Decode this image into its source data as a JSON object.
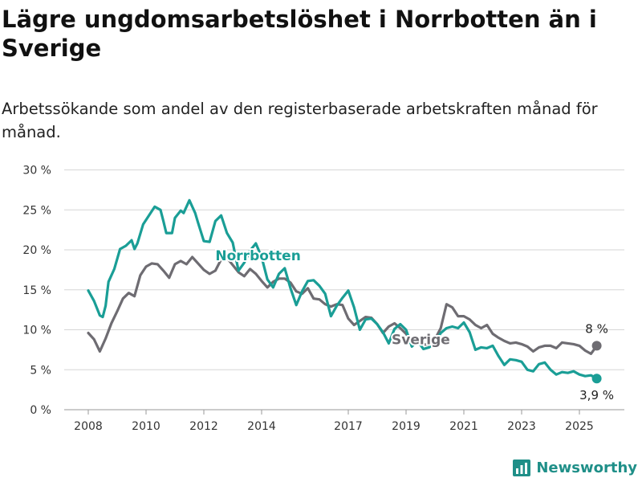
{
  "title": "Lägre ungdomsarbetslöshet i Norrbotten än i Sverige",
  "subtitle": "Arbetssökande som andel av den registerbaserade arbetskraften månad för månad.",
  "brand": "Newsworthy",
  "chart_data": {
    "type": "line",
    "ylabel": "",
    "xlabel": "",
    "ylim": [
      0,
      30
    ],
    "xlim": [
      2007.5,
      2026.5
    ],
    "y_ticks": [
      0,
      5,
      10,
      15,
      20,
      25,
      30
    ],
    "y_tick_labels": [
      "0 %",
      "5 %",
      "10 %",
      "15 %",
      "20 %",
      "25 %",
      "30 %"
    ],
    "x_ticks": [
      2008,
      2010,
      2012,
      2014,
      2017,
      2019,
      2021,
      2023,
      2025
    ],
    "x_tick_labels": [
      "2008",
      "2010",
      "2012",
      "2014",
      "2017",
      "2019",
      "2021",
      "2023",
      "2025"
    ],
    "grid": "horizontal",
    "colors": {
      "norrbotten": "#1a9e96",
      "sverige": "#6e6c72",
      "grid": "#d6d6d6"
    },
    "series": [
      {
        "name": "Norrbotten",
        "label_at": [
          2012.4,
          18.7
        ],
        "end_label": "3,9 %",
        "x": [
          2008.0,
          2008.2,
          2008.4,
          2008.5,
          2008.6,
          2008.7,
          2008.9,
          2009.1,
          2009.3,
          2009.5,
          2009.6,
          2009.7,
          2009.9,
          2010.1,
          2010.3,
          2010.5,
          2010.6,
          2010.7,
          2010.9,
          2011.0,
          2011.2,
          2011.3,
          2011.5,
          2011.7,
          2011.8,
          2012.0,
          2012.2,
          2012.4,
          2012.6,
          2012.8,
          2013.0,
          2013.2,
          2013.4,
          2013.6,
          2013.8,
          2014.0,
          2014.2,
          2014.4,
          2014.6,
          2014.8,
          2015.0,
          2015.2,
          2015.4,
          2015.6,
          2015.8,
          2016.0,
          2016.2,
          2016.4,
          2016.6,
          2016.8,
          2017.0,
          2017.2,
          2017.4,
          2017.6,
          2017.8,
          2018.0,
          2018.2,
          2018.4,
          2018.6,
          2018.8,
          2019.0,
          2019.2,
          2019.4,
          2019.6,
          2019.8,
          2020.0,
          2020.2,
          2020.4,
          2020.6,
          2020.8,
          2021.0,
          2021.2,
          2021.4,
          2021.6,
          2021.8,
          2022.0,
          2022.2,
          2022.4,
          2022.6,
          2022.8,
          2023.0,
          2023.2,
          2023.4,
          2023.6,
          2023.8,
          2024.0,
          2024.2,
          2024.4,
          2024.6,
          2024.8,
          2025.0,
          2025.2,
          2025.4,
          2025.6
        ],
        "values": [
          14.9,
          13.6,
          11.8,
          11.6,
          13.0,
          16.0,
          17.6,
          20.1,
          20.5,
          21.2,
          20.1,
          20.8,
          23.2,
          24.3,
          25.4,
          25.0,
          23.6,
          22.1,
          22.1,
          24.0,
          24.9,
          24.6,
          26.2,
          24.6,
          23.4,
          21.1,
          21.0,
          23.6,
          24.3,
          22.1,
          20.9,
          17.4,
          18.4,
          19.9,
          20.8,
          19.1,
          16.3,
          15.3,
          17.0,
          17.7,
          15.2,
          13.1,
          14.8,
          16.1,
          16.2,
          15.5,
          14.5,
          11.7,
          13.0,
          14.0,
          14.9,
          12.8,
          10.0,
          11.3,
          11.4,
          10.7,
          9.7,
          8.3,
          10.1,
          10.7,
          10.0,
          7.9,
          8.6,
          7.6,
          7.8,
          8.4,
          9.6,
          10.2,
          10.4,
          10.2,
          10.9,
          9.7,
          7.5,
          7.8,
          7.7,
          8.0,
          6.7,
          5.6,
          6.3,
          6.2,
          6.0,
          5.0,
          4.8,
          5.7,
          5.9,
          5.0,
          4.4,
          4.7,
          4.6,
          4.8,
          4.4,
          4.2,
          4.3,
          3.9
        ]
      },
      {
        "name": "Sverige",
        "label_at": [
          2018.5,
          8.2
        ],
        "end_label": "8 %",
        "x": [
          2008.0,
          2008.2,
          2008.4,
          2008.6,
          2008.8,
          2009.0,
          2009.2,
          2009.4,
          2009.6,
          2009.8,
          2010.0,
          2010.2,
          2010.4,
          2010.6,
          2010.8,
          2011.0,
          2011.2,
          2011.4,
          2011.6,
          2011.8,
          2012.0,
          2012.2,
          2012.4,
          2012.6,
          2012.8,
          2013.0,
          2013.2,
          2013.4,
          2013.6,
          2013.8,
          2014.0,
          2014.2,
          2014.4,
          2014.6,
          2014.8,
          2015.0,
          2015.2,
          2015.4,
          2015.6,
          2015.8,
          2016.0,
          2016.2,
          2016.4,
          2016.6,
          2016.8,
          2017.0,
          2017.2,
          2017.4,
          2017.6,
          2017.8,
          2018.0,
          2018.2,
          2018.4,
          2018.6,
          2018.8,
          2019.0,
          2019.2,
          2019.4,
          2019.6,
          2019.8,
          2020.0,
          2020.2,
          2020.4,
          2020.6,
          2020.8,
          2021.0,
          2021.2,
          2021.4,
          2021.6,
          2021.8,
          2022.0,
          2022.2,
          2022.4,
          2022.6,
          2022.8,
          2023.0,
          2023.2,
          2023.4,
          2023.6,
          2023.8,
          2024.0,
          2024.2,
          2024.4,
          2024.6,
          2024.8,
          2025.0,
          2025.2,
          2025.4,
          2025.6
        ],
        "values": [
          9.6,
          8.8,
          7.3,
          8.9,
          10.8,
          12.3,
          13.9,
          14.6,
          14.2,
          16.8,
          17.9,
          18.3,
          18.2,
          17.4,
          16.5,
          18.2,
          18.6,
          18.2,
          19.1,
          18.3,
          17.5,
          17.0,
          17.4,
          18.8,
          19.0,
          18.1,
          17.2,
          16.7,
          17.6,
          17.0,
          16.1,
          15.3,
          16.0,
          16.4,
          16.4,
          15.9,
          14.8,
          14.5,
          15.2,
          13.9,
          13.8,
          13.2,
          12.9,
          13.2,
          13.1,
          11.4,
          10.6,
          11.1,
          11.6,
          11.5,
          10.7,
          9.6,
          10.4,
          10.8,
          10.2,
          9.5,
          8.5,
          8.8,
          8.2,
          8.1,
          8.8,
          10.2,
          13.2,
          12.8,
          11.7,
          11.7,
          11.3,
          10.6,
          10.2,
          10.6,
          9.5,
          9.0,
          8.6,
          8.3,
          8.4,
          8.2,
          7.9,
          7.3,
          7.8,
          8.0,
          8.0,
          7.7,
          8.4,
          8.3,
          8.2,
          8.0,
          7.4,
          7.0,
          8.0
        ]
      }
    ]
  }
}
